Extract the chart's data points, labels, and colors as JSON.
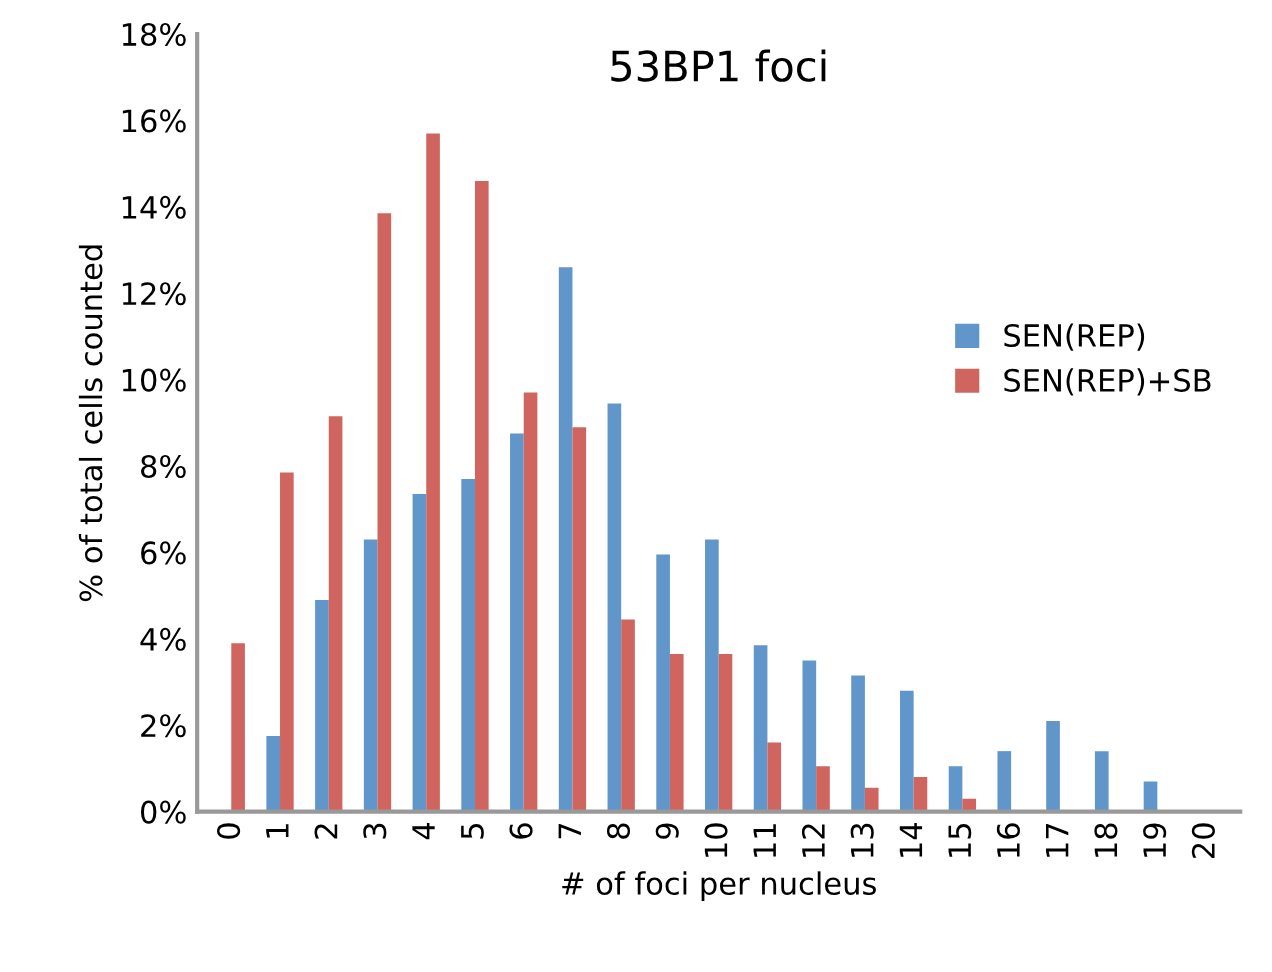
{
  "chart_data": {
    "type": "bar",
    "title": "53BP1 foci",
    "xlabel": "# of foci per nucleus",
    "ylabel": "% of total cells counted",
    "categories": [
      "0",
      "1",
      "2",
      "3",
      "4",
      "5",
      "6",
      "7",
      "8",
      "9",
      "10",
      "11",
      "12",
      "13",
      "14",
      "15",
      "16",
      "17",
      "18",
      "19",
      "20"
    ],
    "series": [
      {
        "name": "SEN(REP)",
        "color": "#6096c9",
        "values": [
          0,
          1.75,
          4.9,
          6.3,
          7.35,
          7.7,
          8.75,
          12.6,
          9.45,
          5.95,
          6.3,
          3.85,
          3.5,
          3.15,
          2.8,
          1.05,
          1.4,
          2.1,
          1.4,
          0.7,
          0
        ]
      },
      {
        "name": "SEN(REP)+SB",
        "color": "#d0655f",
        "values": [
          3.9,
          7.85,
          9.15,
          13.85,
          15.7,
          14.6,
          9.7,
          8.9,
          4.45,
          3.65,
          3.65,
          1.6,
          1.05,
          0.55,
          0.8,
          0.3,
          0,
          0,
          0,
          0,
          0
        ]
      }
    ],
    "ylim": [
      0,
      18
    ],
    "yticks": [
      {
        "value": 0,
        "label": "0%"
      },
      {
        "value": 2,
        "label": "2%"
      },
      {
        "value": 4,
        "label": "4%"
      },
      {
        "value": 6,
        "label": "6%"
      },
      {
        "value": 8,
        "label": "8%"
      },
      {
        "value": 10,
        "label": "10%"
      },
      {
        "value": 12,
        "label": "12%"
      },
      {
        "value": 14,
        "label": "14%"
      },
      {
        "value": 16,
        "label": "16%"
      },
      {
        "value": 18,
        "label": "18%"
      }
    ],
    "grid": false,
    "legend": "right"
  }
}
